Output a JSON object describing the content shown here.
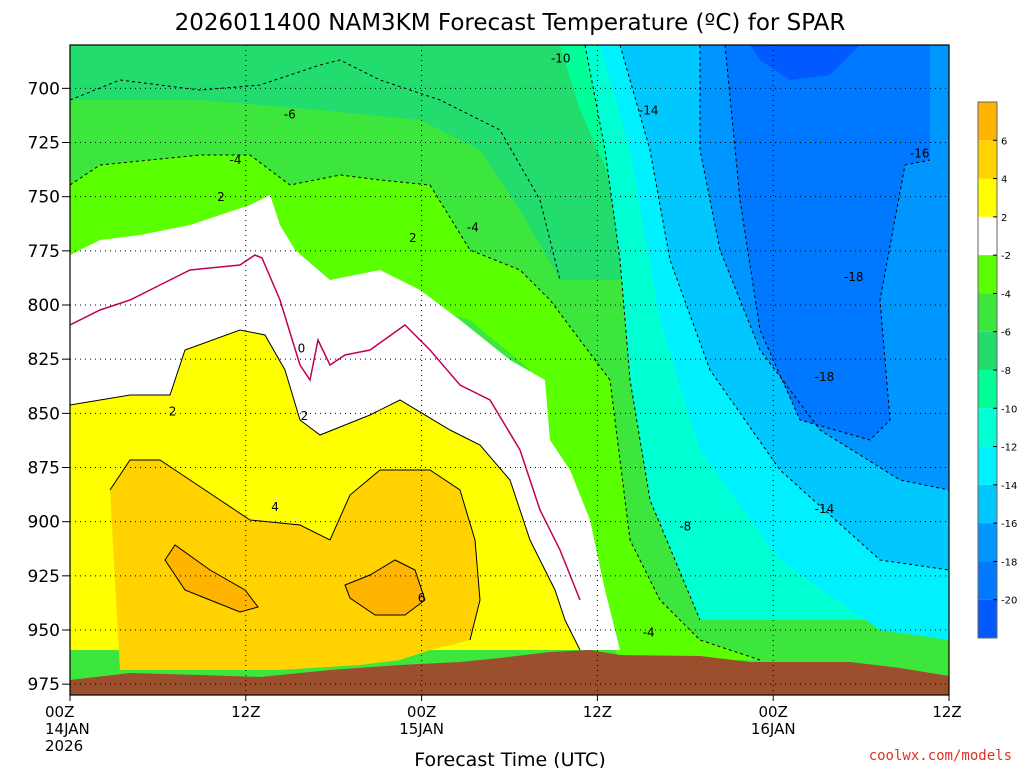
{
  "chart_data": {
    "type": "heatmap",
    "title": "2026011400 NAM3KM Forecast Temperature (ºC) for SPAR",
    "xlabel": "Forecast Time (UTC)",
    "ylabel": "",
    "x_ticks": [
      {
        "hour": 0,
        "lines": [
          "00Z",
          "14JAN",
          "2026"
        ]
      },
      {
        "hour": 12,
        "lines": [
          "12Z"
        ]
      },
      {
        "hour": 24,
        "lines": [
          "00Z",
          "15JAN"
        ]
      },
      {
        "hour": 36,
        "lines": [
          "12Z"
        ]
      },
      {
        "hour": 48,
        "lines": [
          "00Z",
          "16JAN"
        ]
      },
      {
        "hour": 60,
        "lines": [
          "12Z"
        ]
      }
    ],
    "xlim": [
      0,
      60
    ],
    "y_ticks": [
      700,
      725,
      750,
      775,
      800,
      825,
      850,
      875,
      900,
      925,
      950,
      975
    ],
    "ylim": [
      680,
      980
    ],
    "y_inverted": true,
    "colorbar": {
      "labels": [
        "6",
        "4",
        "2",
        "-2",
        "-4",
        "-6",
        "-8",
        "-10",
        "-12",
        "-14",
        "-16",
        "-18",
        "-20"
      ],
      "colors": [
        "#ffb400",
        "#ffd200",
        "#ffff00",
        "#ffffff",
        "#5aff00",
        "#3ce63c",
        "#22dc6e",
        "#00ff96",
        "#00ffd2",
        "#00f0ff",
        "#00c8ff",
        "#0096ff",
        "#0078ff",
        "#005aff"
      ]
    },
    "contour_labels": [
      {
        "text": "-10",
        "hour": 33.5,
        "p": 688
      },
      {
        "text": "-14",
        "hour": 39.5,
        "p": 712
      },
      {
        "text": "-6",
        "hour": 15.0,
        "p": 714
      },
      {
        "text": "-16",
        "hour": 58.0,
        "p": 732
      },
      {
        "text": "-4",
        "hour": 11.3,
        "p": 735
      },
      {
        "text": "2",
        "hour": 10.3,
        "p": 752
      },
      {
        "text": "-4",
        "hour": 27.5,
        "p": 766
      },
      {
        "text": "2",
        "hour": 23.4,
        "p": 771
      },
      {
        "text": "-18",
        "hour": 53.5,
        "p": 789
      },
      {
        "text": "0",
        "hour": 15.8,
        "p": 822
      },
      {
        "text": "-18",
        "hour": 51.5,
        "p": 835
      },
      {
        "text": "2",
        "hour": 7.0,
        "p": 851
      },
      {
        "text": "2",
        "hour": 16.0,
        "p": 853
      },
      {
        "text": "4",
        "hour": 14.0,
        "p": 895
      },
      {
        "text": "-14",
        "hour": 51.5,
        "p": 896
      },
      {
        "text": "-8",
        "hour": 42.0,
        "p": 904
      },
      {
        "text": "6",
        "hour": 24.0,
        "p": 937
      },
      {
        "text": "-4",
        "hour": 39.5,
        "p": 953
      }
    ],
    "grid": true,
    "legend": "colorbar-right"
  },
  "credit": "coolwx.com/models"
}
